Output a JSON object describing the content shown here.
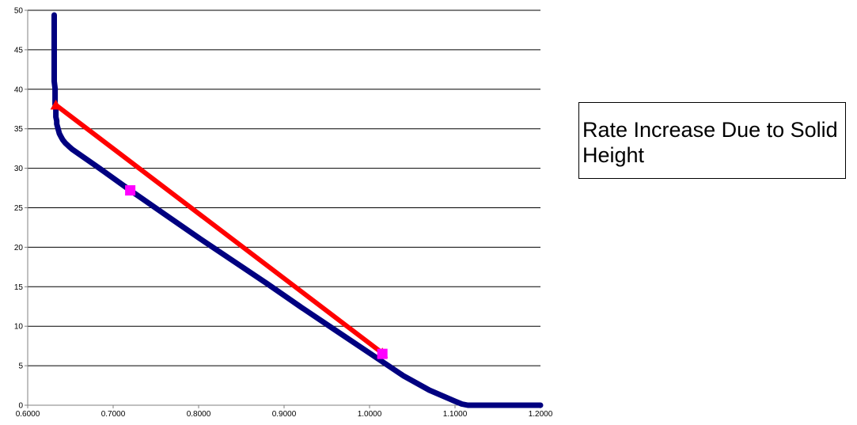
{
  "annotation": {
    "text": "Rate Increase Due to Solid Height"
  },
  "colors": {
    "series_main": "#000080",
    "red_line": "#ff0000",
    "pink_marker": "#ff00ff",
    "grid": "#000000",
    "axis": "#808080"
  },
  "chart_data": {
    "type": "scatter",
    "title": "",
    "xlabel": "",
    "ylabel": "",
    "xlim": [
      0.6,
      1.2
    ],
    "ylim": [
      0,
      50
    ],
    "x_ticks": [
      "0.6000",
      "0.7000",
      "0.8000",
      "0.9000",
      "1.0000",
      "1.1000",
      "1.2000"
    ],
    "y_ticks": [
      "0",
      "5",
      "10",
      "15",
      "20",
      "25",
      "30",
      "35",
      "40",
      "45",
      "50"
    ],
    "grid": "horizontal",
    "series": [
      {
        "marker": "diamond",
        "color": "#000080",
        "x": [
          0.631,
          0.631,
          0.631,
          0.631,
          0.631,
          0.631,
          0.631,
          0.632,
          0.632,
          0.632,
          0.632,
          0.633,
          0.633,
          0.633,
          0.634,
          0.634,
          0.635,
          0.636,
          0.637,
          0.639,
          0.641,
          0.644,
          0.648,
          0.652,
          0.66,
          0.68,
          0.72,
          0.76,
          0.8,
          0.84,
          0.88,
          0.92,
          0.96,
          1.0,
          1.04,
          1.07,
          1.1,
          1.108,
          1.115,
          1.118,
          1.13,
          1.14,
          1.15,
          1.16,
          1.17,
          1.18,
          1.19,
          1.2
        ],
        "y": [
          49.4,
          47.3,
          45.6,
          44.3,
          43.1,
          42.0,
          41.0,
          40.1,
          39.4,
          38.7,
          38.1,
          37.5,
          37.0,
          36.5,
          36.0,
          35.6,
          35.2,
          34.8,
          34.4,
          34.0,
          33.6,
          33.2,
          32.8,
          32.4,
          31.8,
          30.3,
          27.2,
          24.2,
          21.2,
          18.3,
          15.4,
          12.4,
          9.5,
          6.6,
          3.7,
          1.9,
          0.5,
          0.15,
          0.0,
          0.0,
          0.0,
          0.0,
          0.0,
          0.0,
          0.0,
          0.0,
          0.0,
          0.0
        ]
      },
      {
        "marker": "triangle",
        "color": "#ff0000",
        "x": [
          0.633,
          1.015
        ],
        "y": [
          38.0,
          6.6
        ]
      },
      {
        "marker": "square",
        "color": "#ff00ff",
        "x": [
          0.72,
          1.015
        ],
        "y": [
          27.2,
          6.5
        ]
      }
    ]
  }
}
